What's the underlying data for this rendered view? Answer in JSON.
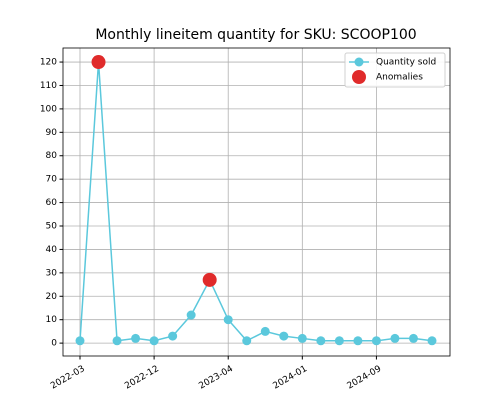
{
  "chart_data": {
    "type": "line",
    "title": "Monthly lineitem quantity for SKU: SCOOP100",
    "categories": [
      "2022-03",
      null,
      null,
      null,
      "2022-12",
      null,
      null,
      null,
      "2023-04",
      null,
      null,
      null,
      "2024-01",
      null,
      null,
      null,
      "2024-09",
      null,
      null,
      null
    ],
    "series": [
      {
        "name": "Quantity sold",
        "color": "#5bc8dc",
        "linestyle": "solid",
        "marker_size": 4.5,
        "values": [
          1,
          120,
          1,
          2,
          1,
          3,
          12,
          27,
          10,
          1,
          5,
          3,
          2,
          1,
          1,
          1,
          1,
          2,
          2,
          1
        ]
      },
      {
        "name": "Anomalies",
        "color": "#e02b2b",
        "linestyle": "none",
        "marker_size": 7,
        "values": [
          null,
          120,
          null,
          null,
          null,
          null,
          null,
          27,
          null,
          null,
          null,
          null,
          null,
          null,
          null,
          null,
          null,
          null,
          null,
          null
        ]
      }
    ],
    "ylim": [
      -5.5,
      126
    ],
    "yticks": [
      0,
      10,
      20,
      30,
      40,
      50,
      60,
      70,
      80,
      90,
      100,
      110,
      120
    ],
    "grid": true,
    "legend": "upper right"
  }
}
